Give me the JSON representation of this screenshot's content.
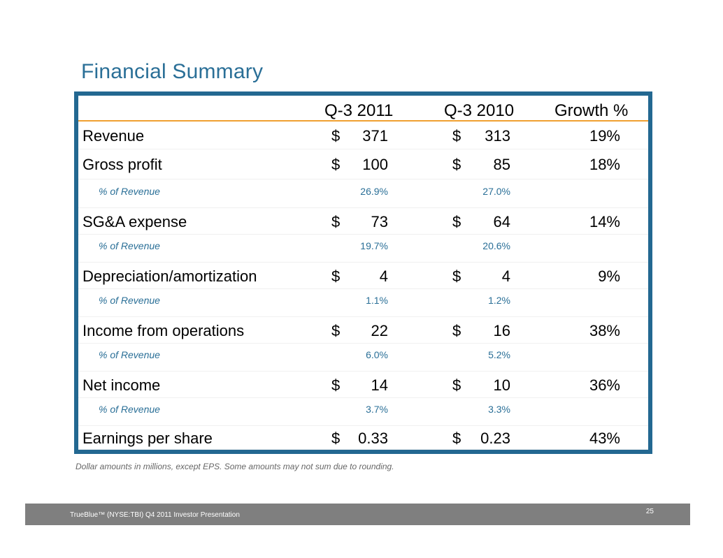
{
  "title": "Financial Summary",
  "table": {
    "columns": [
      "Q-3 2011",
      "Q-3 2010",
      "Growth %"
    ],
    "rows": [
      {
        "type": "main",
        "label": "Revenue",
        "d1": "$",
        "v1": "371",
        "d2": "$",
        "v2": "313",
        "growth": "19%"
      },
      {
        "type": "main",
        "label": "Gross profit",
        "d1": "$",
        "v1": "100",
        "d2": "$",
        "v2": "85",
        "growth": "18%"
      },
      {
        "type": "pct",
        "label": "% of Revenue",
        "p1": "26.9%",
        "p2": "27.0%"
      },
      {
        "type": "main",
        "label": "SG&A expense",
        "d1": "$",
        "v1": "73",
        "d2": "$",
        "v2": "64",
        "growth": "14%"
      },
      {
        "type": "pct",
        "label": "% of Revenue",
        "p1": "19.7%",
        "p2": "20.6%"
      },
      {
        "type": "main",
        "label": "Depreciation/amortization",
        "d1": "$",
        "v1": "4",
        "d2": "$",
        "v2": "4",
        "growth": "9%"
      },
      {
        "type": "pct",
        "label": "% of Revenue",
        "p1": "1.1%",
        "p2": "1.2%"
      },
      {
        "type": "main",
        "label": "Income from operations",
        "d1": "$",
        "v1": "22",
        "d2": "$",
        "v2": "16",
        "growth": "38%"
      },
      {
        "type": "pct",
        "label": "% of Revenue",
        "p1": "6.0%",
        "p2": "5.2%"
      },
      {
        "type": "main",
        "label": "Net income",
        "d1": "$",
        "v1": "14",
        "d2": "$",
        "v2": "10",
        "growth": "36%"
      },
      {
        "type": "pct",
        "label": "% of Revenue",
        "p1": "3.7%",
        "p2": "3.3%"
      },
      {
        "type": "main",
        "label": "Earnings per share",
        "d1": "$",
        "v1": "0.33",
        "d2": "$",
        "v2": "0.23",
        "growth": "43%"
      }
    ]
  },
  "note": "Dollar amounts in millions, except EPS.  Some amounts may not sum due to rounding.",
  "footer": {
    "text": "TrueBlue™ (NYSE:TBI) Q4 2011 Investor Presentation",
    "page": "25"
  }
}
